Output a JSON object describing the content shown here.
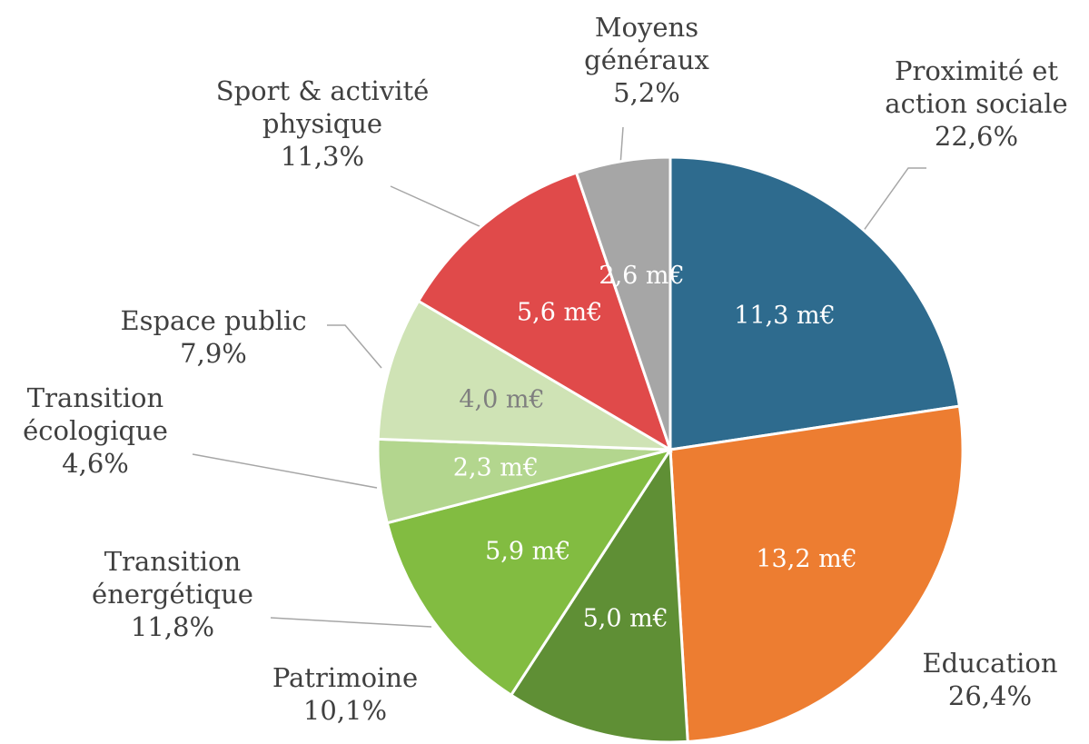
{
  "chart_data": {
    "type": "pie",
    "categories": [
      "Proximité et action sociale",
      "Education",
      "Patrimoine",
      "Transition énergétique",
      "Transition écologique",
      "Espace public",
      "Sport & activité physique",
      "Moyens généraux"
    ],
    "values": [
      22.6,
      26.4,
      10.1,
      11.8,
      4.6,
      7.9,
      11.3,
      5.2
    ],
    "value_labels": [
      "22,6%",
      "26,4%",
      "10,1%",
      "11,8%",
      "4,6%",
      "7,9%",
      "11,3%",
      "5,2%"
    ],
    "amounts": [
      11.3,
      13.2,
      5.0,
      5.9,
      2.3,
      4.0,
      5.6,
      2.6
    ],
    "amount_labels": [
      "11,3 m€",
      "13,2 m€",
      "5,0 m€",
      "5,9 m€",
      "2,3 m€",
      "4,0 m€",
      "5,6 m€",
      "2,6 m€"
    ],
    "colors": [
      "#2e6b8e",
      "#ed7d31",
      "#5f8f35",
      "#82bc41",
      "#b3d68e",
      "#cfe3b5",
      "#e04a4a",
      "#a6a6a6"
    ]
  }
}
